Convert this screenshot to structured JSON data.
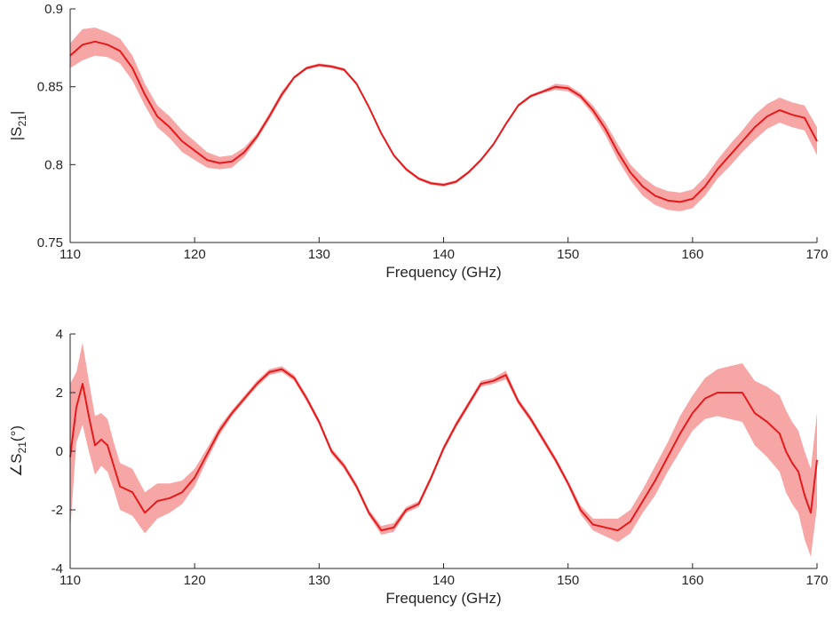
{
  "chart_data": [
    {
      "type": "line",
      "xlabel": "Frequency (GHz)",
      "ylabel_main": "|S",
      "ylabel_sub": "21",
      "ylabel_tail": "|",
      "xlim": [
        110,
        170
      ],
      "ylim": [
        0.75,
        0.9
      ],
      "xticks": [
        110,
        120,
        130,
        140,
        150,
        160,
        170
      ],
      "xtick_labels": [
        "110",
        "120",
        "130",
        "140",
        "150",
        "160",
        "170"
      ],
      "yticks": [
        0.75,
        0.8,
        0.85,
        0.9
      ],
      "ytick_labels": [
        "0.75",
        "0.8",
        "0.85",
        "0.9"
      ],
      "grid": false,
      "line_color": "#e41a1c",
      "band_color": "#f7a6a6",
      "x": [
        110,
        111,
        112,
        113,
        114,
        115,
        116,
        117,
        118,
        119,
        120,
        121,
        122,
        123,
        124,
        125,
        126,
        127,
        128,
        129,
        130,
        131,
        132,
        133,
        134,
        135,
        136,
        137,
        138,
        139,
        140,
        141,
        142,
        143,
        144,
        145,
        146,
        147,
        148,
        149,
        150,
        151,
        152,
        153,
        154,
        155,
        156,
        157,
        158,
        159,
        160,
        161,
        162,
        163,
        164,
        165,
        166,
        167,
        168,
        169,
        170
      ],
      "y": [
        0.87,
        0.877,
        0.879,
        0.877,
        0.873,
        0.862,
        0.845,
        0.831,
        0.824,
        0.815,
        0.809,
        0.803,
        0.801,
        0.802,
        0.808,
        0.818,
        0.831,
        0.845,
        0.856,
        0.862,
        0.864,
        0.863,
        0.861,
        0.852,
        0.837,
        0.82,
        0.806,
        0.797,
        0.791,
        0.788,
        0.787,
        0.789,
        0.795,
        0.803,
        0.813,
        0.826,
        0.838,
        0.844,
        0.847,
        0.85,
        0.849,
        0.844,
        0.835,
        0.823,
        0.808,
        0.795,
        0.786,
        0.78,
        0.777,
        0.776,
        0.778,
        0.786,
        0.797,
        0.806,
        0.815,
        0.824,
        0.831,
        0.835,
        0.832,
        0.83,
        0.815
      ],
      "band": [
        0.008,
        0.01,
        0.009,
        0.008,
        0.008,
        0.008,
        0.007,
        0.007,
        0.007,
        0.007,
        0.006,
        0.005,
        0.004,
        0.004,
        0.003,
        0.002,
        0.002,
        0.002,
        0.001,
        0.001,
        0.001,
        0.001,
        0.001,
        0.001,
        0.001,
        0.001,
        0.001,
        0.001,
        0.001,
        0.001,
        0.001,
        0.001,
        0.001,
        0.001,
        0.001,
        0.001,
        0.001,
        0.001,
        0.001,
        0.002,
        0.002,
        0.002,
        0.003,
        0.004,
        0.005,
        0.005,
        0.006,
        0.006,
        0.006,
        0.006,
        0.006,
        0.006,
        0.006,
        0.007,
        0.007,
        0.008,
        0.008,
        0.008,
        0.008,
        0.008,
        0.009
      ]
    },
    {
      "type": "line",
      "xlabel": "Frequency (GHz)",
      "ylabel_main": "∠S",
      "ylabel_sub": "21",
      "ylabel_tail": "(°)",
      "xlim": [
        110,
        170
      ],
      "ylim": [
        -4,
        4
      ],
      "xticks": [
        110,
        120,
        130,
        140,
        150,
        160,
        170
      ],
      "xtick_labels": [
        "110",
        "120",
        "130",
        "140",
        "150",
        "160",
        "170"
      ],
      "yticks": [
        -4,
        -2,
        0,
        2,
        4
      ],
      "ytick_labels": [
        "-4",
        "-2",
        "0",
        "2",
        "4"
      ],
      "grid": false,
      "line_color": "#e41a1c",
      "band_color": "#f7a6a6",
      "x": [
        110,
        110.5,
        111,
        111.5,
        112,
        112.5,
        113,
        113.5,
        114,
        114.5,
        115,
        116,
        117,
        118,
        119,
        120,
        121,
        122,
        123,
        124,
        125,
        126,
        127,
        128,
        129,
        130,
        131,
        132,
        133,
        134,
        135,
        136,
        137,
        138,
        139,
        140,
        141,
        142,
        143,
        144,
        145,
        146,
        147,
        148,
        149,
        150,
        151,
        152,
        153,
        154,
        155,
        156,
        157,
        158,
        159,
        160,
        161,
        162,
        163,
        164,
        165,
        166,
        167,
        167.5,
        168,
        168.5,
        169,
        169.5,
        170
      ],
      "y": [
        -0.2,
        1.5,
        2.3,
        1.2,
        0.2,
        0.4,
        0.2,
        -0.5,
        -1.2,
        -1.3,
        -1.4,
        -2.1,
        -1.7,
        -1.6,
        -1.4,
        -0.9,
        -0.1,
        0.7,
        1.3,
        1.8,
        2.3,
        2.7,
        2.8,
        2.5,
        1.8,
        1.0,
        0.0,
        -0.5,
        -1.2,
        -2.1,
        -2.7,
        -2.6,
        -2.0,
        -1.8,
        -0.9,
        0.1,
        0.9,
        1.6,
        2.3,
        2.4,
        2.6,
        1.7,
        1.1,
        0.4,
        -0.3,
        -1.1,
        -2.0,
        -2.5,
        -2.6,
        -2.7,
        -2.4,
        -1.7,
        -1.0,
        -0.2,
        0.6,
        1.3,
        1.8,
        2.0,
        2.0,
        2.0,
        1.3,
        1.0,
        0.6,
        0.0,
        -0.4,
        -0.7,
        -1.5,
        -2.1,
        -0.3
      ],
      "band": [
        2.5,
        1.2,
        1.4,
        1.2,
        1.0,
        0.9,
        0.9,
        0.8,
        0.8,
        0.8,
        0.8,
        0.7,
        0.6,
        0.5,
        0.4,
        0.3,
        0.2,
        0.15,
        0.1,
        0.1,
        0.1,
        0.1,
        0.1,
        0.1,
        0.1,
        0.1,
        0.1,
        0.1,
        0.1,
        0.1,
        0.15,
        0.15,
        0.1,
        0.1,
        0.1,
        0.1,
        0.1,
        0.1,
        0.1,
        0.1,
        0.15,
        0.1,
        0.1,
        0.1,
        0.1,
        0.1,
        0.15,
        0.2,
        0.3,
        0.4,
        0.4,
        0.4,
        0.5,
        0.5,
        0.6,
        0.6,
        0.7,
        0.8,
        0.9,
        1.0,
        1.1,
        1.2,
        1.3,
        1.4,
        1.4,
        1.4,
        1.5,
        1.5,
        1.6
      ]
    }
  ]
}
